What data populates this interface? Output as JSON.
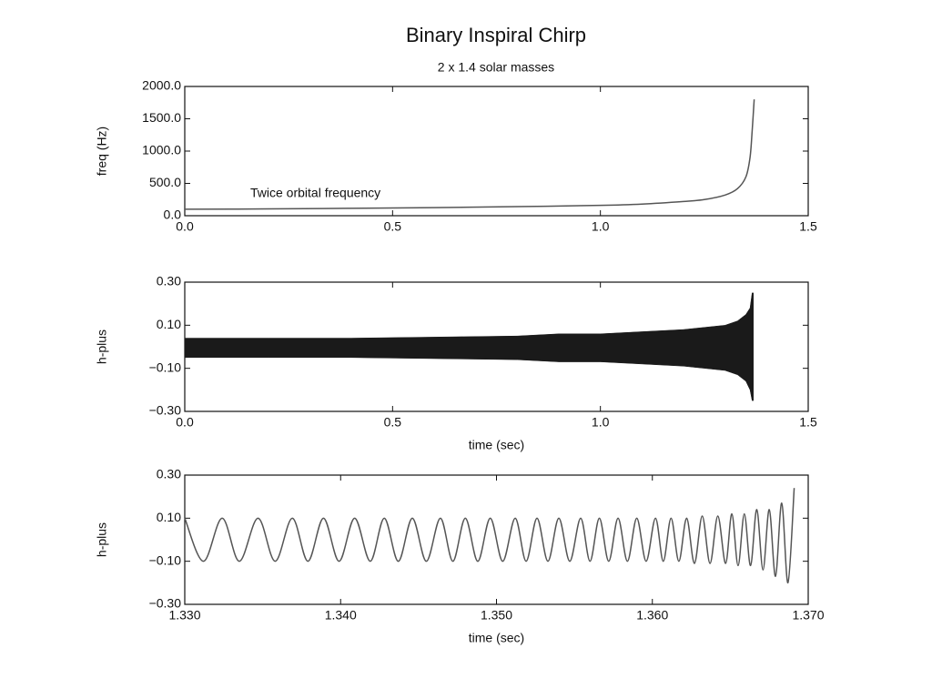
{
  "chart_data": [
    {
      "type": "line",
      "title": "Binary Inspiral Chirp",
      "subtitle": "2 x 1.4 solar masses",
      "y_label": "freq (Hz)",
      "annotation": "Twice orbital frequency",
      "color": "#555555",
      "x": [
        0,
        0.2,
        0.4,
        0.6,
        0.8,
        1.0,
        1.1,
        1.2,
        1.25,
        1.3,
        1.33,
        1.35,
        1.36,
        1.365,
        1.37
      ],
      "y": [
        100,
        105,
        115,
        125,
        140,
        160,
        180,
        220,
        250,
        320,
        420,
        600,
        900,
        1300,
        1800
      ],
      "xlim": [
        0,
        1.5
      ],
      "ylim": [
        0,
        2000
      ],
      "xticks": [
        {
          "value": 0,
          "label": "0.0"
        },
        {
          "value": 0.5,
          "label": "0.5"
        },
        {
          "value": 1,
          "label": "1.0"
        },
        {
          "value": 1.5,
          "label": "1.5"
        }
      ],
      "yticks": [
        {
          "value": 0,
          "label": "0.0"
        },
        {
          "value": 500,
          "label": "500.0"
        },
        {
          "value": 1000,
          "label": "1000.0"
        },
        {
          "value": 1500,
          "label": "1500.0"
        },
        {
          "value": 2000,
          "label": "2000.0"
        }
      ],
      "grid": false
    },
    {
      "type": "band",
      "y_label": "h-plus",
      "x_label": "time (sec)",
      "color": "#1a1a1a",
      "x": [
        0,
        0.2,
        0.4,
        0.6,
        0.8,
        0.9,
        1.0,
        1.1,
        1.2,
        1.25,
        1.3,
        1.33,
        1.35,
        1.36,
        1.365,
        1.368
      ],
      "upper": [
        0.04,
        0.04,
        0.04,
        0.045,
        0.05,
        0.06,
        0.06,
        0.07,
        0.08,
        0.09,
        0.1,
        0.12,
        0.15,
        0.18,
        0.25,
        0.25
      ],
      "lower": [
        -0.05,
        -0.05,
        -0.05,
        -0.055,
        -0.06,
        -0.07,
        -0.07,
        -0.08,
        -0.09,
        -0.1,
        -0.11,
        -0.13,
        -0.16,
        -0.2,
        -0.25,
        -0.25
      ],
      "xlim": [
        0,
        1.5
      ],
      "ylim": [
        -0.3,
        0.3
      ],
      "xticks": [
        {
          "value": 0,
          "label": "0.0"
        },
        {
          "value": 0.5,
          "label": "0.5"
        },
        {
          "value": 1,
          "label": "1.0"
        },
        {
          "value": 1.5,
          "label": "1.5"
        }
      ],
      "yticks": [
        {
          "value": -0.3,
          "label": "−0.30"
        },
        {
          "value": -0.1,
          "label": "−0.10"
        },
        {
          "value": 0.1,
          "label": "0.10"
        },
        {
          "value": 0.3,
          "label": "0.30"
        }
      ],
      "grid": false
    },
    {
      "type": "line",
      "y_label": "h-plus",
      "x_label": "time (sec)",
      "color": "#555555",
      "x": [
        1.33,
        1.3312,
        1.3324,
        1.3335,
        1.3347,
        1.3358,
        1.3369,
        1.3379,
        1.3389,
        1.3399,
        1.3409,
        1.3419,
        1.3428,
        1.3437,
        1.3446,
        1.3455,
        1.3464,
        1.3472,
        1.348,
        1.3488,
        1.3496,
        1.3504,
        1.3512,
        1.3519,
        1.3526,
        1.3533,
        1.354,
        1.3547,
        1.3554,
        1.356,
        1.3566,
        1.3572,
        1.3578,
        1.3584,
        1.359,
        1.3596,
        1.3602,
        1.3607,
        1.3612,
        1.3617,
        1.3622,
        1.3627,
        1.3632,
        1.3637,
        1.3642,
        1.3647,
        1.3651,
        1.3655,
        1.3659,
        1.3663,
        1.3667,
        1.3671,
        1.3675,
        1.3679,
        1.3683,
        1.3687,
        1.3691
      ],
      "y": [
        0.1,
        -0.1,
        0.1,
        -0.1,
        0.1,
        -0.1,
        0.1,
        -0.1,
        0.1,
        -0.1,
        0.1,
        -0.1,
        0.1,
        -0.1,
        0.1,
        -0.1,
        0.1,
        -0.1,
        0.1,
        -0.1,
        0.1,
        -0.1,
        0.1,
        -0.1,
        0.1,
        -0.1,
        0.1,
        -0.1,
        0.1,
        -0.1,
        0.1,
        -0.1,
        0.1,
        -0.1,
        0.1,
        -0.1,
        0.1,
        -0.1,
        0.1,
        -0.1,
        0.1,
        -0.11,
        0.11,
        -0.11,
        0.11,
        -0.11,
        0.12,
        -0.12,
        0.12,
        -0.12,
        0.14,
        -0.14,
        0.14,
        -0.17,
        0.17,
        -0.2,
        0.24
      ],
      "xlim": [
        1.33,
        1.37
      ],
      "ylim": [
        -0.3,
        0.3
      ],
      "xticks": [
        {
          "value": 1.33,
          "label": "1.330"
        },
        {
          "value": 1.34,
          "label": "1.340"
        },
        {
          "value": 1.35,
          "label": "1.350"
        },
        {
          "value": 1.36,
          "label": "1.360"
        },
        {
          "value": 1.37,
          "label": "1.370"
        }
      ],
      "yticks": [
        {
          "value": -0.3,
          "label": "−0.30"
        },
        {
          "value": -0.1,
          "label": "−0.10"
        },
        {
          "value": 0.1,
          "label": "0.10"
        },
        {
          "value": 0.3,
          "label": "0.30"
        }
      ],
      "grid": false
    }
  ]
}
